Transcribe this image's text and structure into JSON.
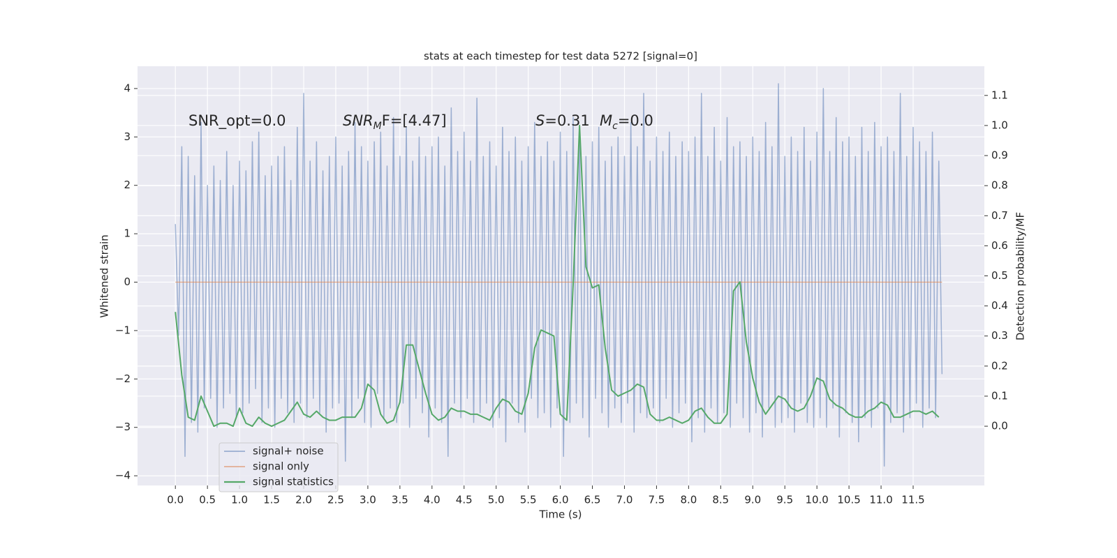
{
  "chart_data": {
    "type": "line",
    "title": "stats at each timestep for test data 5272 [signal=0]",
    "xlabel": "Time (s)",
    "ylabel": "Whitened strain",
    "y2label": "Detection probability/MF",
    "xlim": [
      -0.59,
      12.61
    ],
    "ylim": [
      -4.2,
      4.46
    ],
    "y2lim": [
      -0.197,
      1.197
    ],
    "xticks": [
      {
        "value": 0,
        "label": "0.0"
      },
      {
        "value": 0.5,
        "label": "0.5"
      },
      {
        "value": 1,
        "label": "1.0"
      },
      {
        "value": 1.5,
        "label": "1.5"
      },
      {
        "value": 2,
        "label": "2.0"
      },
      {
        "value": 2.5,
        "label": "2.5"
      },
      {
        "value": 3,
        "label": "3.0"
      },
      {
        "value": 3.5,
        "label": "3.5"
      },
      {
        "value": 4,
        "label": "4.0"
      },
      {
        "value": 4.5,
        "label": "4.5"
      },
      {
        "value": 5,
        "label": "5.0"
      },
      {
        "value": 5.5,
        "label": "5.5"
      },
      {
        "value": 6,
        "label": "6.0"
      },
      {
        "value": 6.5,
        "label": "6.5"
      },
      {
        "value": 7,
        "label": "7.0"
      },
      {
        "value": 7.5,
        "label": "7.5"
      },
      {
        "value": 8,
        "label": "8.0"
      },
      {
        "value": 8.5,
        "label": "8.5"
      },
      {
        "value": 9,
        "label": "9.0"
      },
      {
        "value": 9.5,
        "label": "9.5"
      },
      {
        "value": 10,
        "label": "10.0"
      },
      {
        "value": 10.5,
        "label": "10.5"
      },
      {
        "value": 11,
        "label": "11.0"
      },
      {
        "value": 11.5,
        "label": "11.5"
      }
    ],
    "yticks": [
      {
        "value": -4,
        "label": "−4"
      },
      {
        "value": -3,
        "label": "−3"
      },
      {
        "value": -2,
        "label": "−2"
      },
      {
        "value": -1,
        "label": "−1"
      },
      0,
      1,
      2,
      3,
      4
    ],
    "y2ticks": [
      {
        "value": 0,
        "label": "0.0"
      },
      {
        "value": 0.1,
        "label": "0.1"
      },
      {
        "value": 0.2,
        "label": "0.2"
      },
      {
        "value": 0.3,
        "label": "0.3"
      },
      {
        "value": 0.4,
        "label": "0.4"
      },
      {
        "value": 0.5,
        "label": "0.5"
      },
      {
        "value": 0.6,
        "label": "0.6"
      },
      {
        "value": 0.7,
        "label": "0.7"
      },
      {
        "value": 0.8,
        "label": "0.8"
      },
      {
        "value": 0.9,
        "label": "0.9"
      },
      {
        "value": 1,
        "label": "1.0"
      },
      {
        "value": 1.1,
        "label": "1.1"
      }
    ],
    "grid": true,
    "legend": "lower left",
    "annotations": [
      {
        "main": "SNR_opt=0.0"
      },
      {
        "main": "SNR",
        "sub": "M",
        "rest": "F=[4.47]"
      },
      {
        "main": "S",
        "rest": "=0.31"
      },
      {
        "main": "M",
        "sub": "c",
        "rest": "=0.0"
      }
    ],
    "series": [
      {
        "name": "signal+ noise",
        "color": "#4c72b0",
        "x": [
          0,
          0.05,
          0.1,
          0.15,
          0.2,
          0.25,
          0.3,
          0.35,
          0.4,
          0.45,
          0.5,
          0.55,
          0.6,
          0.65,
          0.7,
          0.75,
          0.8,
          0.85,
          0.9,
          0.95,
          1,
          1.05,
          1.1,
          1.15,
          1.2,
          1.25,
          1.3,
          1.35,
          1.4,
          1.45,
          1.5,
          1.55,
          1.6,
          1.65,
          1.7,
          1.75,
          1.8,
          1.85,
          1.9,
          1.95,
          2,
          2.05,
          2.1,
          2.15,
          2.2,
          2.25,
          2.3,
          2.35,
          2.4,
          2.45,
          2.5,
          2.55,
          2.6,
          2.65,
          2.7,
          2.75,
          2.8,
          2.85,
          2.9,
          2.95,
          3,
          3.05,
          3.1,
          3.15,
          3.2,
          3.25,
          3.3,
          3.35,
          3.4,
          3.45,
          3.5,
          3.55,
          3.6,
          3.65,
          3.7,
          3.75,
          3.8,
          3.85,
          3.9,
          3.95,
          4,
          4.05,
          4.1,
          4.15,
          4.2,
          4.25,
          4.3,
          4.35,
          4.4,
          4.45,
          4.5,
          4.55,
          4.6,
          4.65,
          4.7,
          4.75,
          4.8,
          4.85,
          4.9,
          4.95,
          5,
          5.05,
          5.1,
          5.15,
          5.2,
          5.25,
          5.3,
          5.35,
          5.4,
          5.45,
          5.5,
          5.55,
          5.6,
          5.65,
          5.7,
          5.75,
          5.8,
          5.85,
          5.9,
          5.95,
          6,
          6.05,
          6.1,
          6.15,
          6.2,
          6.25,
          6.3,
          6.35,
          6.4,
          6.45,
          6.5,
          6.55,
          6.6,
          6.65,
          6.7,
          6.75,
          6.8,
          6.85,
          6.9,
          6.95,
          7,
          7.05,
          7.1,
          7.15,
          7.2,
          7.25,
          7.3,
          7.35,
          7.4,
          7.45,
          7.5,
          7.55,
          7.6,
          7.65,
          7.7,
          7.75,
          7.8,
          7.85,
          7.9,
          7.95,
          8,
          8.05,
          8.1,
          8.15,
          8.2,
          8.25,
          8.3,
          8.35,
          8.4,
          8.45,
          8.5,
          8.55,
          8.6,
          8.65,
          8.7,
          8.75,
          8.8,
          8.85,
          8.9,
          8.95,
          9,
          9.05,
          9.1,
          9.15,
          9.2,
          9.25,
          9.3,
          9.35,
          9.4,
          9.45,
          9.5,
          9.55,
          9.6,
          9.65,
          9.7,
          9.75,
          9.8,
          9.85,
          9.9,
          9.95,
          10,
          10.05,
          10.1,
          10.15,
          10.2,
          10.25,
          10.3,
          10.35,
          10.4,
          10.45,
          10.5,
          10.55,
          10.6,
          10.65,
          10.7,
          10.75,
          10.8,
          10.85,
          10.9,
          10.95,
          11,
          11.05,
          11.1,
          11.15,
          11.2,
          11.25,
          11.3,
          11.35,
          11.4,
          11.45,
          11.5,
          11.55,
          11.6,
          11.65,
          11.7,
          11.75,
          11.8,
          11.85,
          11.9,
          11.95
        ],
        "values": [
          1.2,
          -1.1,
          2.8,
          -3.6,
          2.6,
          -2.9,
          2.2,
          -3.1,
          3.3,
          -2.6,
          2.0,
          -2.4,
          2.4,
          -3.0,
          2.1,
          -2.6,
          2.7,
          -2.3,
          2.0,
          -2.8,
          2.5,
          -2.7,
          2.3,
          -2.5,
          2.9,
          -2.2,
          3.1,
          -2.9,
          2.2,
          -2.6,
          2.4,
          -3.0,
          2.6,
          -2.4,
          2.8,
          -2.7,
          2.1,
          -2.9,
          3.2,
          -2.5,
          3.9,
          -2.8,
          2.5,
          -2.4,
          2.9,
          -2.7,
          2.3,
          -3.1,
          2.6,
          -2.6,
          3.0,
          -2.5,
          2.4,
          -3.7,
          2.7,
          -2.8,
          3.3,
          -2.4,
          2.8,
          -2.9,
          2.5,
          -3.0,
          2.9,
          -2.3,
          3.1,
          -2.8,
          2.4,
          -2.6,
          3.4,
          -2.9,
          2.6,
          -2.5,
          3.2,
          -3.0,
          2.5,
          -2.4,
          3.0,
          -2.7,
          2.6,
          -3.2,
          2.8,
          -2.6,
          3.0,
          -2.9,
          2.4,
          -3.6,
          3.6,
          -2.5,
          2.7,
          -2.8,
          3.1,
          -2.4,
          2.5,
          -2.9,
          3.8,
          -2.7,
          2.6,
          -2.5,
          2.9,
          -3.0,
          2.4,
          -2.8,
          3.2,
          -3.3,
          2.7,
          -2.5,
          3.0,
          -2.9,
          2.5,
          -3.1,
          2.8,
          -2.4,
          3.3,
          -2.8,
          2.6,
          -2.7,
          2.9,
          -3.0,
          2.5,
          -2.6,
          3.1,
          -3.6,
          2.7,
          -2.9,
          3.4,
          -2.5,
          3.0,
          -2.8,
          2.6,
          -3.2,
          2.9,
          -2.4,
          3.2,
          -2.7,
          2.5,
          -3.0,
          2.8,
          -2.6,
          3.0,
          -2.9,
          2.6,
          -2.5,
          3.3,
          -3.1,
          2.8,
          -2.7,
          3.9,
          -2.8,
          2.5,
          -2.6,
          3.0,
          -2.9,
          2.7,
          -2.4,
          3.1,
          -3.0,
          2.6,
          -2.7,
          2.9,
          -2.5,
          2.7,
          -3.3,
          3.0,
          -2.8,
          3.9,
          -3.1,
          2.6,
          -2.6,
          3.2,
          -2.9,
          2.5,
          -2.7,
          3.4,
          -3.0,
          2.8,
          -2.5,
          2.9,
          -2.8,
          2.6,
          -3.1,
          3.0,
          -2.7,
          2.7,
          -3.2,
          3.3,
          -2.6,
          2.8,
          -3.0,
          4.1,
          -2.9,
          2.6,
          -2.8,
          3.0,
          -3.1,
          2.7,
          -2.5,
          3.2,
          -2.9,
          2.5,
          -3.0,
          3.1,
          -2.8,
          4.0,
          -3.0,
          2.7,
          -2.6,
          3.4,
          -3.2,
          2.9,
          -2.7,
          3.0,
          -2.9,
          2.6,
          -3.3,
          3.2,
          -2.8,
          2.7,
          -3.0,
          3.3,
          -2.6,
          2.8,
          -3.8,
          3.0,
          -2.9,
          2.7,
          -2.7,
          3.9,
          -3.1,
          2.6,
          -2.8,
          3.2,
          -2.5,
          2.9,
          -3.0,
          2.7,
          -2.6,
          3.1,
          -2.8,
          2.5,
          -1.9
        ]
      },
      {
        "name": "signal only",
        "color": "#dd8452",
        "x": [
          0,
          11.95
        ],
        "values": [
          0,
          0
        ]
      },
      {
        "name": "signal statistics",
        "color": "#55a868",
        "axis": "y2",
        "x": [
          0,
          0.1,
          0.2,
          0.3,
          0.4,
          0.5,
          0.6,
          0.7,
          0.8,
          0.9,
          1,
          1.1,
          1.2,
          1.3,
          1.4,
          1.5,
          1.6,
          1.7,
          1.8,
          1.9,
          2,
          2.1,
          2.2,
          2.3,
          2.4,
          2.5,
          2.6,
          2.7,
          2.8,
          2.9,
          3,
          3.1,
          3.2,
          3.3,
          3.4,
          3.5,
          3.6,
          3.7,
          3.8,
          3.9,
          4,
          4.1,
          4.2,
          4.3,
          4.4,
          4.5,
          4.6,
          4.7,
          4.8,
          4.9,
          5,
          5.1,
          5.2,
          5.3,
          5.4,
          5.5,
          5.6,
          5.7,
          5.8,
          5.9,
          6,
          6.1,
          6.2,
          6.3,
          6.4,
          6.5,
          6.6,
          6.7,
          6.8,
          6.9,
          7,
          7.1,
          7.2,
          7.3,
          7.4,
          7.5,
          7.6,
          7.7,
          7.8,
          7.9,
          8,
          8.1,
          8.2,
          8.3,
          8.4,
          8.5,
          8.6,
          8.7,
          8.8,
          8.9,
          9,
          9.1,
          9.2,
          9.3,
          9.4,
          9.5,
          9.6,
          9.7,
          9.8,
          9.9,
          10,
          10.1,
          10.2,
          10.3,
          10.4,
          10.5,
          10.6,
          10.7,
          10.8,
          10.9,
          11,
          11.1,
          11.2,
          11.3,
          11.4,
          11.5,
          11.6,
          11.7,
          11.8,
          11.9
        ],
        "values": [
          0.38,
          0.17,
          0.03,
          0.02,
          0.1,
          0.05,
          0.0,
          0.01,
          0.01,
          0.0,
          0.06,
          0.01,
          0.0,
          0.03,
          0.01,
          0.0,
          0.01,
          0.02,
          0.05,
          0.08,
          0.04,
          0.03,
          0.05,
          0.03,
          0.02,
          0.02,
          0.03,
          0.03,
          0.03,
          0.06,
          0.14,
          0.12,
          0.04,
          0.01,
          0.02,
          0.08,
          0.27,
          0.27,
          0.19,
          0.11,
          0.04,
          0.02,
          0.03,
          0.06,
          0.05,
          0.05,
          0.04,
          0.04,
          0.03,
          0.02,
          0.06,
          0.09,
          0.08,
          0.05,
          0.04,
          0.11,
          0.26,
          0.32,
          0.31,
          0.3,
          0.04,
          0.02,
          0.47,
          1.0,
          0.53,
          0.46,
          0.47,
          0.26,
          0.12,
          0.1,
          0.11,
          0.12,
          0.14,
          0.13,
          0.04,
          0.02,
          0.02,
          0.03,
          0.02,
          0.01,
          0.02,
          0.05,
          0.06,
          0.03,
          0.01,
          0.01,
          0.04,
          0.45,
          0.48,
          0.28,
          0.16,
          0.08,
          0.04,
          0.07,
          0.1,
          0.09,
          0.06,
          0.05,
          0.06,
          0.1,
          0.16,
          0.15,
          0.09,
          0.07,
          0.06,
          0.04,
          0.03,
          0.03,
          0.05,
          0.06,
          0.08,
          0.07,
          0.03,
          0.03,
          0.04,
          0.05,
          0.05,
          0.04,
          0.05,
          0.03
        ]
      }
    ]
  }
}
